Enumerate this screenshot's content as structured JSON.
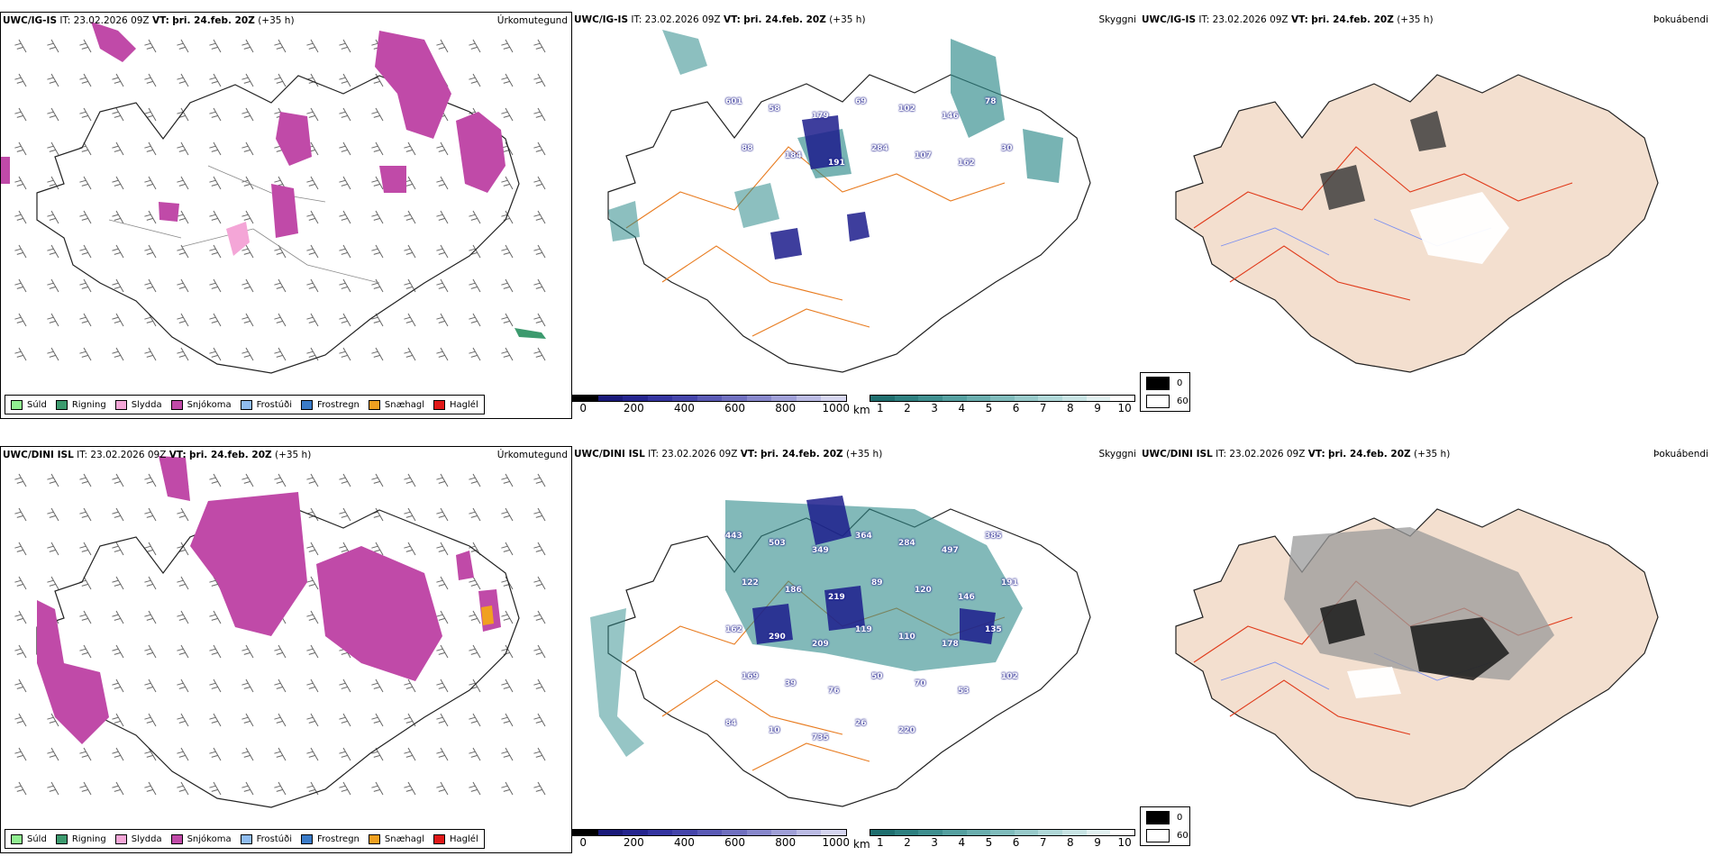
{
  "colors": {
    "suld": "#90ee90",
    "rigning": "#3c9a6e",
    "slydda": "#f4a6d7",
    "snjokoma": "#c04aa8",
    "frostudi": "#8fbcf0",
    "frostregn": "#3a7bc8",
    "snaehagl": "#f0a020",
    "hagel": "#e01818",
    "land_beige": "#f3dfcf",
    "road_orange": "#e87b1f",
    "road_red": "#e03a1a",
    "river_blue": "#7a8ff0",
    "cloud_teal": "#2e8b8b",
    "cloud_navy": "#1c1c8c"
  },
  "rows": [
    {
      "model": "UWC/IG-IS",
      "precip": {
        "title": "Úrkomutegund"
      },
      "cloud": {
        "title": "Skyggni",
        "labels": [
          "601",
          "58",
          "179",
          "69",
          "102",
          "146",
          "78",
          "88",
          "184",
          "191",
          "284",
          "107",
          "162",
          "30"
        ]
      },
      "fog": {
        "title": "Þokuábendi"
      }
    },
    {
      "model": "UWC/DINI ISL",
      "precip": {
        "title": "Úrkomutegund"
      },
      "cloud": {
        "title": "Skyggni",
        "labels": [
          "443",
          "503",
          "349",
          "364",
          "284",
          "497",
          "385",
          "122",
          "186",
          "219",
          "89",
          "120",
          "146",
          "191",
          "162",
          "290",
          "209",
          "119",
          "110",
          "178",
          "135",
          "169",
          "39",
          "76",
          "50",
          "70",
          "53",
          "102",
          "84",
          "10",
          "735",
          "26",
          "220"
        ]
      },
      "fog": {
        "title": "Þokuábendi"
      }
    }
  ],
  "header": {
    "it_label": "IT:",
    "it_value": "23.02.2026 09Z",
    "vt_label": "VT:",
    "vt_value": "þri. 24.feb. 20Z",
    "lead": "(+35 h)"
  },
  "precip_legend": [
    {
      "label": "Súld",
      "color": "#90ee90"
    },
    {
      "label": "Rigning",
      "color": "#3c9a6e"
    },
    {
      "label": "Slydda",
      "color": "#f4a6d7"
    },
    {
      "label": "Snjókoma",
      "color": "#c04aa8"
    },
    {
      "label": "Frostúði",
      "color": "#8fbcf0"
    },
    {
      "label": "Frostregn",
      "color": "#3a7bc8"
    },
    {
      "label": "Snæhagl",
      "color": "#f0a020"
    },
    {
      "label": "Haglél",
      "color": "#e01818"
    }
  ],
  "ceiling_bar": {
    "unit": "m",
    "ticks": [
      "0",
      "200",
      "400",
      "600",
      "800",
      "1000"
    ],
    "colors": [
      "#000000",
      "#1a1a7a",
      "#25258f",
      "#3434a0",
      "#4545aa",
      "#5a5ab5",
      "#7070c0",
      "#8888cc",
      "#a0a0d8",
      "#bbbbe4",
      "#d5d5ef"
    ]
  },
  "visibility_bar": {
    "unit": "km",
    "ticks": [
      "1",
      "2",
      "3",
      "4",
      "5",
      "6",
      "7",
      "8",
      "9",
      "10"
    ],
    "colors": [
      "#1f6f6f",
      "#2e8080",
      "#3f8f8f",
      "#55a0a0",
      "#6aaeae",
      "#80bcbc",
      "#98caca",
      "#b0d8d8",
      "#c8e4e4",
      "#e2f1f1",
      "#ffffff"
    ]
  },
  "fog_legend": {
    "max_label": "0",
    "min_label": "60"
  }
}
